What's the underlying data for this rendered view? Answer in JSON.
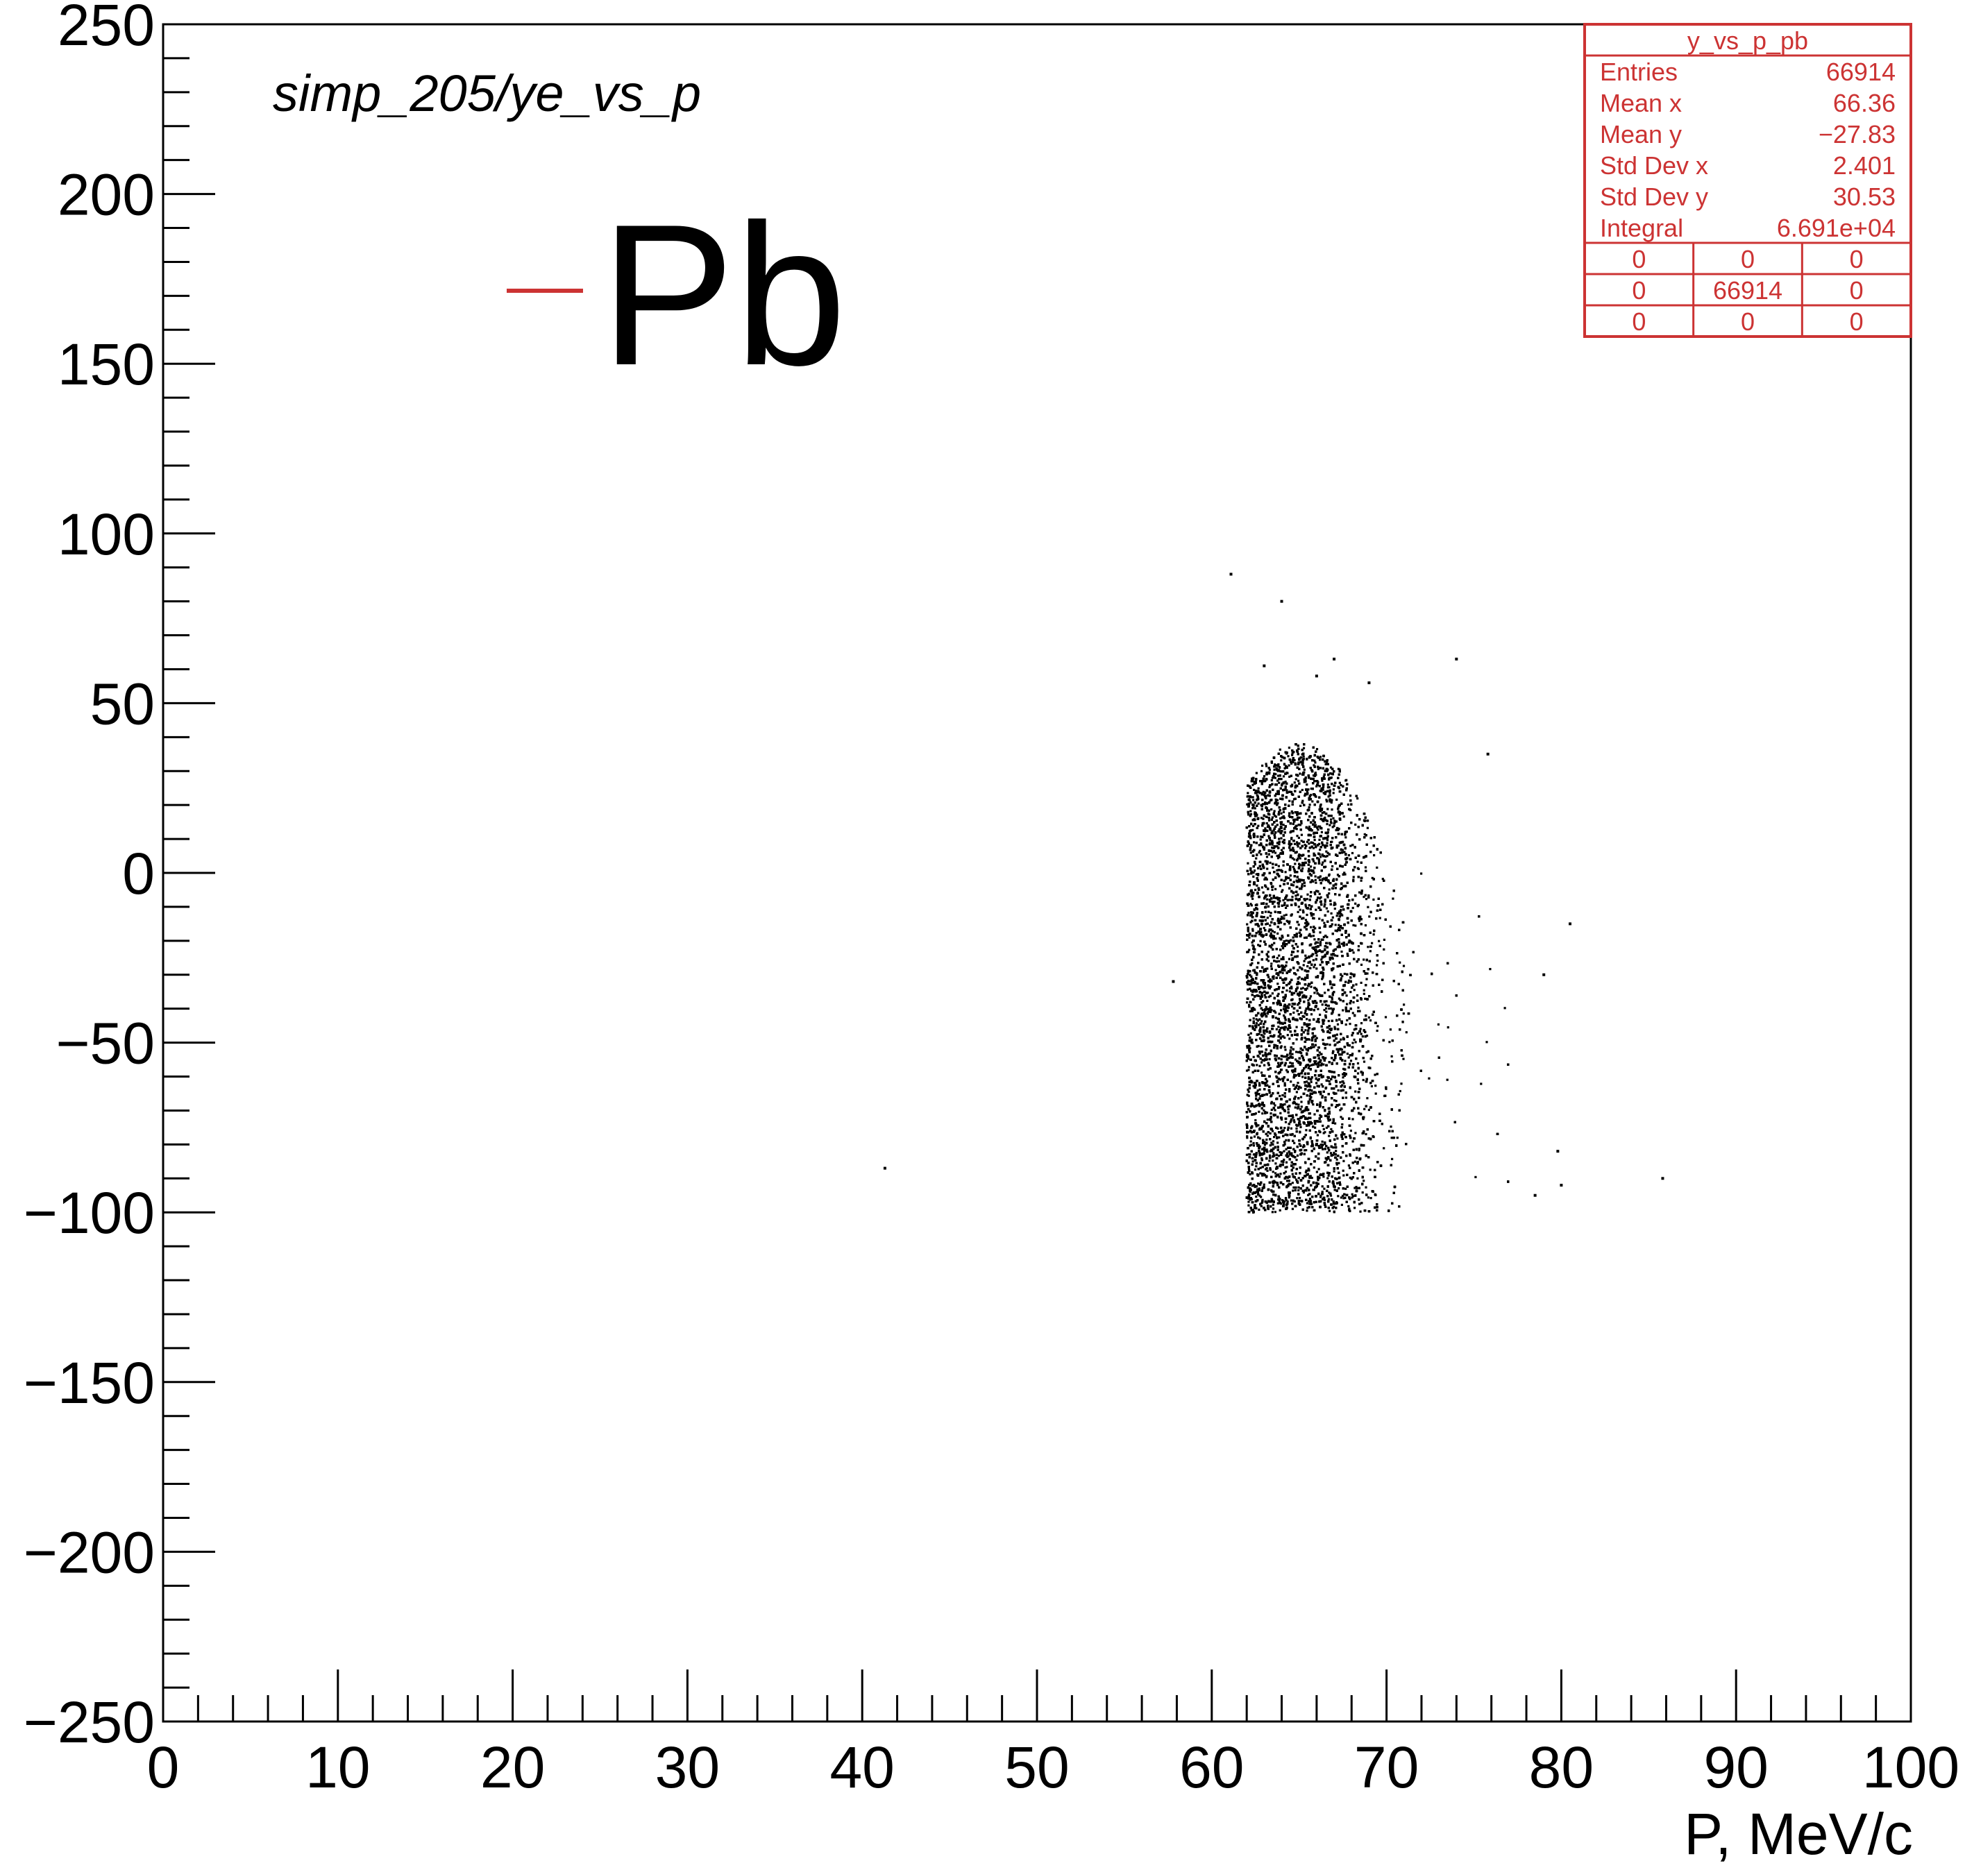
{
  "chart_data": {
    "type": "scatter",
    "title": "simp_205/ye_vs_p",
    "xlabel": "P, MeV/c",
    "ylabel": "",
    "xlim": [
      0,
      100
    ],
    "ylim": [
      -250,
      250
    ],
    "x_ticks": [
      0,
      10,
      20,
      30,
      40,
      50,
      60,
      70,
      80,
      90,
      100
    ],
    "x_tick_labels": [
      "0",
      "10",
      "20",
      "30",
      "40",
      "50",
      "60",
      "70",
      "80",
      "90",
      "100"
    ],
    "y_ticks": [
      -250,
      -200,
      -150,
      -100,
      -50,
      0,
      50,
      100,
      150,
      200,
      250
    ],
    "y_tick_labels": [
      "−250",
      "−200",
      "−150",
      "−100",
      "−50",
      "0",
      "50",
      "100",
      "150",
      "200",
      "250"
    ],
    "grid": false,
    "legend": {
      "placement": "top-left",
      "entries": [
        {
          "label": "Pb",
          "color": "#cc3333"
        }
      ]
    },
    "series": [
      {
        "name": "Pb",
        "marker_color": "#000000",
        "distribution": {
          "x_min": 61.5,
          "x_max": 72.0,
          "y_min": -100,
          "y_max": 50,
          "x_center": 65.8,
          "y_center": -30
        },
        "points": [
          [
            61.1,
            88
          ],
          [
            64.0,
            80
          ],
          [
            67.0,
            63
          ],
          [
            74.0,
            63
          ],
          [
            63.0,
            61
          ],
          [
            66.0,
            58
          ],
          [
            69.0,
            56
          ],
          [
            75.8,
            35
          ],
          [
            57.8,
            -32
          ],
          [
            41.3,
            -87
          ],
          [
            85.8,
            -90
          ],
          [
            80.5,
            -15
          ],
          [
            79.0,
            -30
          ],
          [
            78.5,
            -95
          ],
          [
            80.0,
            -92
          ],
          [
            79.8,
            -82
          ]
        ]
      }
    ],
    "stats_box": {
      "title": "y_vs_p_pb",
      "rows": [
        {
          "label": "Entries",
          "value": "66914"
        },
        {
          "label": "Mean x",
          "value": "66.36"
        },
        {
          "label": "Mean y",
          "value": "−27.83"
        },
        {
          "label": "Std Dev x",
          "value": "2.401"
        },
        {
          "label": "Std Dev y",
          "value": "30.53"
        },
        {
          "label": "Integral",
          "value": "6.691e+04"
        }
      ],
      "grid": [
        [
          "0",
          "0",
          "0"
        ],
        [
          "0",
          "66914",
          "0"
        ],
        [
          "0",
          "0",
          "0"
        ]
      ]
    },
    "colors": {
      "stats": "#cc3333",
      "axes": "#000000",
      "points": "#000000"
    }
  }
}
